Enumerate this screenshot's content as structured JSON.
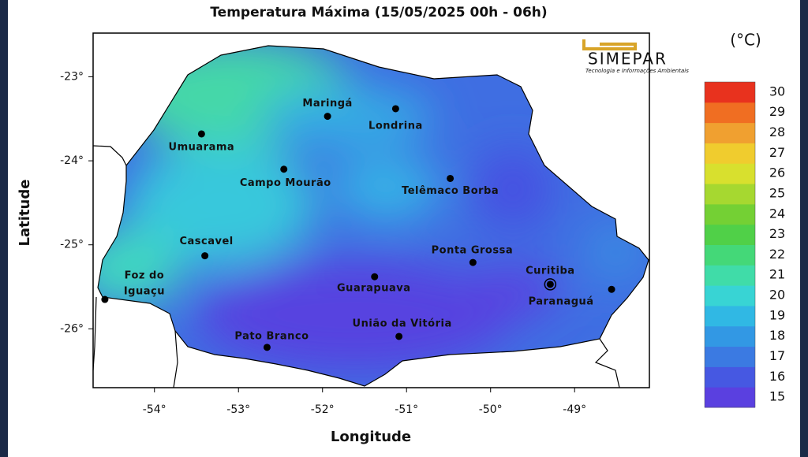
{
  "map": {
    "title": "Temperatura Máxima (15/05/2025 00h - 06h)",
    "xlabel": "Longitude",
    "ylabel": "Latitude",
    "xlim": [
      -54.73,
      -48.11
    ],
    "ylim": [
      -26.7,
      -22.48
    ],
    "xticks": [
      {
        "value": -54,
        "label": "-54°"
      },
      {
        "value": -53,
        "label": "-53°"
      },
      {
        "value": -52,
        "label": "-52°"
      },
      {
        "value": -51,
        "label": "-51°"
      },
      {
        "value": -50,
        "label": "-50°"
      },
      {
        "value": -49,
        "label": "-49°"
      }
    ],
    "yticks": [
      {
        "value": -23,
        "label": "-23°"
      },
      {
        "value": -24,
        "label": "-24°"
      },
      {
        "value": -25,
        "label": "-25°"
      },
      {
        "value": -26,
        "label": "-26°"
      }
    ],
    "logo": {
      "name": "SIMEPAR",
      "tagline": "Tecnologia e Informações Ambientais"
    },
    "cities": [
      {
        "label": [
          "Maringá"
        ],
        "lon": -51.94,
        "lat": -23.47
      },
      {
        "label": [
          "Londrina"
        ],
        "lon": -51.13,
        "lat": -23.38
      },
      {
        "label": [
          "Umuarama"
        ],
        "lon": -53.44,
        "lat": -23.68
      },
      {
        "label": [
          "Campo Mourão"
        ],
        "lon": -52.46,
        "lat": -24.1
      },
      {
        "label": [
          "Telêmaco Borba"
        ],
        "lon": -50.48,
        "lat": -24.21
      },
      {
        "label": [
          "Cascavel"
        ],
        "lon": -53.4,
        "lat": -25.13
      },
      {
        "label": [
          "Foz do",
          "Iguaçu"
        ],
        "lon": -54.59,
        "lat": -25.65
      },
      {
        "label": [
          "Ponta Grossa"
        ],
        "lon": -50.21,
        "lat": -25.21
      },
      {
        "label": [
          "Guarapuava"
        ],
        "lon": -51.38,
        "lat": -25.38
      },
      {
        "label": [
          "Curitiba"
        ],
        "lon": -49.29,
        "lat": -25.47
      },
      {
        "label": [
          "Paranaguá"
        ],
        "lon": -48.56,
        "lat": -25.53
      },
      {
        "label": [
          "Pato Branco"
        ],
        "lon": -52.66,
        "lat": -26.22
      },
      {
        "label": [
          "União da Vitória"
        ],
        "lon": -51.09,
        "lat": -26.09
      }
    ],
    "colorbar": {
      "unit": "(°C)",
      "ticks": [
        15,
        16,
        17,
        18,
        19,
        20,
        21,
        22,
        23,
        24,
        25,
        26,
        27,
        28,
        29,
        30
      ],
      "colors": [
        "#5a40e0",
        "#4658e2",
        "#3b7ae2",
        "#3298e4",
        "#30b8e4",
        "#38d4d4",
        "#40dca8",
        "#44d878",
        "#50d048",
        "#74d034",
        "#a6d830",
        "#d8e02e",
        "#f0cc2e",
        "#f0a030",
        "#f06e22",
        "#e8321e"
      ]
    }
  }
}
